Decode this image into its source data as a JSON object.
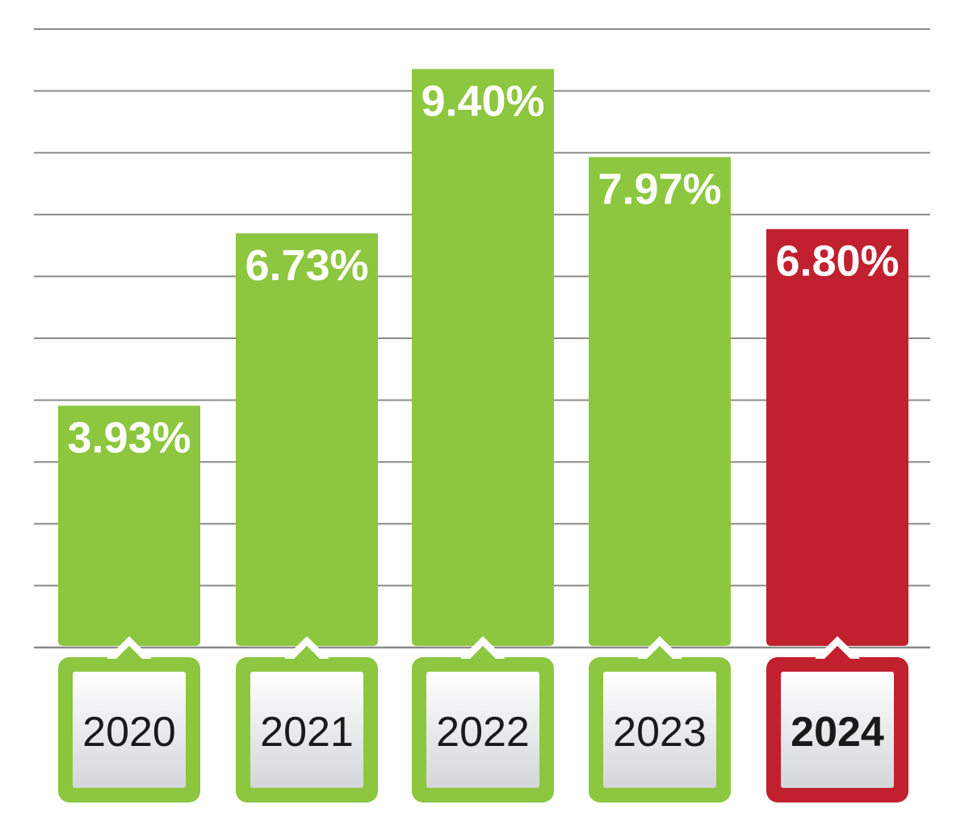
{
  "chart_data": {
    "type": "bar",
    "categories": [
      "2020",
      "2021",
      "2022",
      "2023",
      "2024"
    ],
    "values": [
      3.93,
      6.73,
      9.4,
      7.97,
      6.8
    ],
    "value_labels": [
      "3.93%",
      "6.73%",
      "9.40%",
      "7.97%",
      "6.80%"
    ],
    "unit": "%",
    "highlight_index": 4,
    "ylim": [
      0,
      10.05
    ],
    "grid": true,
    "gridline_count": 11,
    "title": "",
    "xlabel": "",
    "ylabel": ""
  },
  "colors": {
    "bar": "#8dc63f",
    "highlight": "#c1202f",
    "grid": "#8a8a8a",
    "label_box_top": "#ffffff",
    "label_box_bottom": "#d4d6da",
    "value_text": "#ffffff",
    "year_text": "#1a1a1a"
  }
}
